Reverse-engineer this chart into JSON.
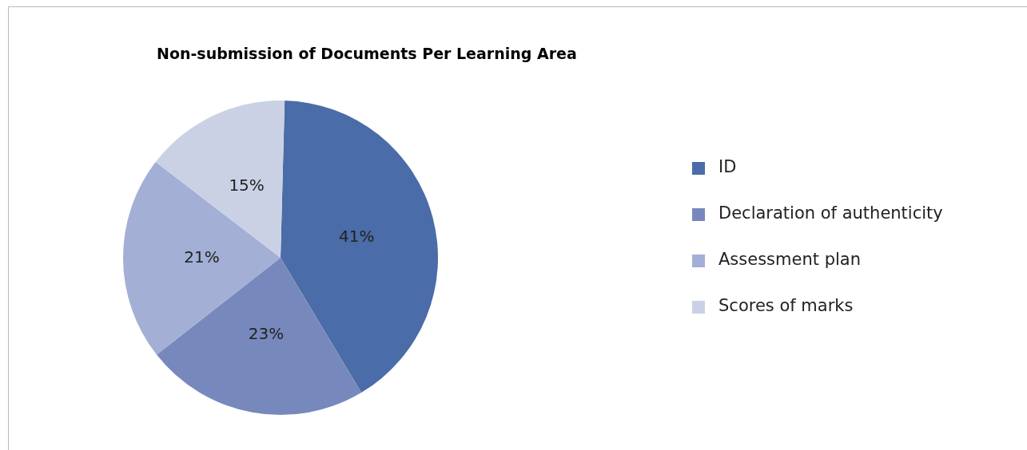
{
  "chart_data": {
    "type": "pie",
    "title": "Non-submission of Documents Per Learning Area",
    "categories": [
      "ID",
      "Declaration of authenticity",
      "Assessment plan",
      "Scores of marks"
    ],
    "values": [
      41,
      23,
      21,
      15
    ],
    "value_labels": [
      "41%",
      "23%",
      "21%",
      "15%"
    ],
    "colors": [
      "#4a6ca8",
      "#7789bc",
      "#a3afd4",
      "#cbd1e5"
    ],
    "legend": "right"
  }
}
